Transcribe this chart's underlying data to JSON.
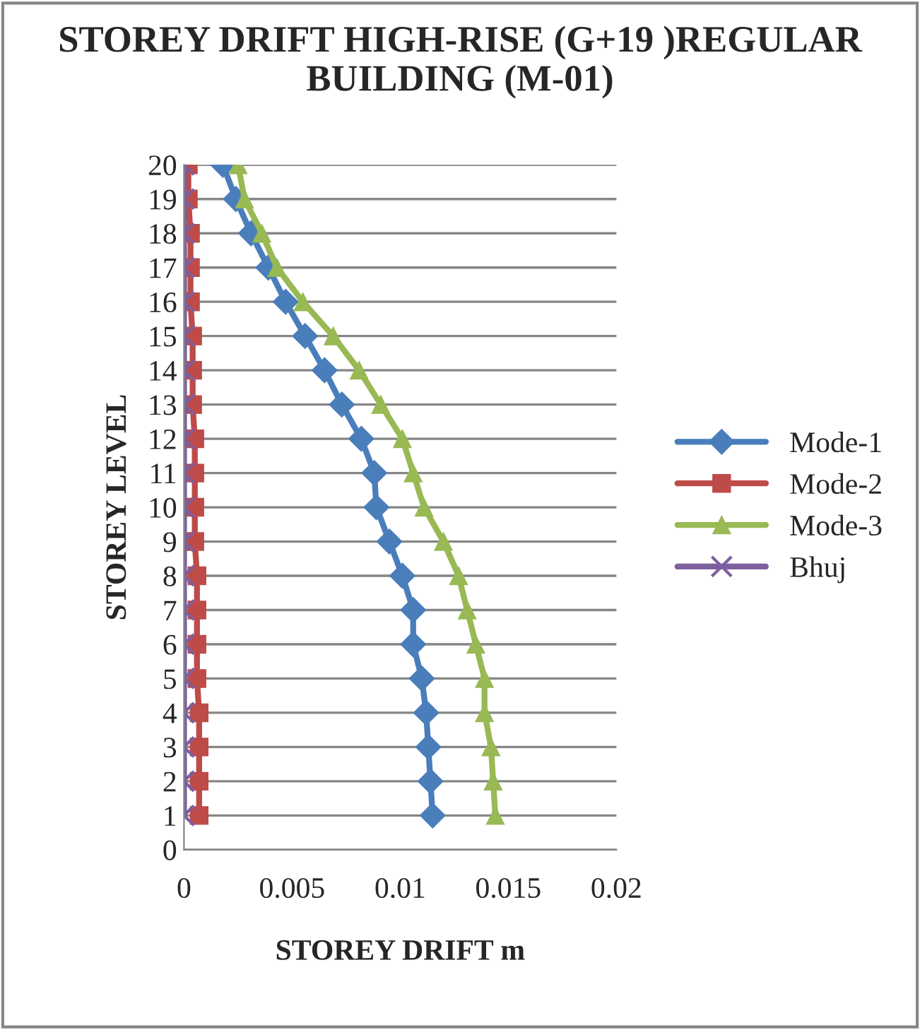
{
  "chart_data": {
    "type": "line",
    "title": "STOREY DRIFT HIGH-RISE (G+19 )REGULAR BUILDING (M-01)",
    "xlabel": "STOREY DRIFT m",
    "ylabel": "STOREY LEVEL",
    "xlim": [
      0,
      0.02
    ],
    "xticks": [
      0,
      0.005,
      0.01,
      0.015,
      0.02
    ],
    "ylim": [
      0,
      20
    ],
    "yticks": [
      0,
      1,
      2,
      3,
      4,
      5,
      6,
      7,
      8,
      9,
      10,
      11,
      12,
      13,
      14,
      15,
      16,
      17,
      18,
      19,
      20
    ],
    "grid": "y",
    "legend": "right",
    "series": [
      {
        "name": "Mode-1",
        "color": "#4a7ebb",
        "marker": "diamond",
        "x": [
          0.0115,
          0.0114,
          0.0113,
          0.0112,
          0.011,
          0.0106,
          0.0106,
          0.0101,
          0.0095,
          0.0089,
          0.0088,
          0.0082,
          0.0073,
          0.0065,
          0.0056,
          0.0047,
          0.0039,
          0.0031,
          0.0024,
          0.0018
        ],
        "values": [
          1,
          2,
          3,
          4,
          5,
          6,
          7,
          8,
          9,
          10,
          11,
          12,
          13,
          14,
          15,
          16,
          17,
          18,
          19,
          20
        ]
      },
      {
        "name": "Mode-2",
        "color": "#be4b48",
        "marker": "square",
        "x": [
          0.0007,
          0.0007,
          0.0007,
          0.0007,
          0.0006,
          0.0006,
          0.0006,
          0.0006,
          0.0005,
          0.0005,
          0.0005,
          0.0005,
          0.0004,
          0.0004,
          0.0004,
          0.0003,
          0.0003,
          0.0003,
          0.0002,
          0.0002
        ],
        "values": [
          1,
          2,
          3,
          4,
          5,
          6,
          7,
          8,
          9,
          10,
          11,
          12,
          13,
          14,
          15,
          16,
          17,
          18,
          19,
          20
        ]
      },
      {
        "name": "Mode-3",
        "color": "#98b954",
        "marker": "triangle",
        "x": [
          0.0144,
          0.0143,
          0.0142,
          0.0139,
          0.0139,
          0.0135,
          0.0131,
          0.0127,
          0.012,
          0.0111,
          0.0106,
          0.0101,
          0.0091,
          0.0081,
          0.0069,
          0.0055,
          0.0043,
          0.0036,
          0.0028,
          0.0025
        ],
        "values": [
          1,
          2,
          3,
          4,
          5,
          6,
          7,
          8,
          9,
          10,
          11,
          12,
          13,
          14,
          15,
          16,
          17,
          18,
          19,
          20
        ]
      },
      {
        "name": "Bhuj",
        "color": "#7d5fa0",
        "marker": "cross",
        "x": [
          0,
          0,
          0,
          0,
          0,
          0,
          0,
          0,
          0,
          0,
          0,
          0,
          0,
          0,
          0,
          0,
          0,
          0,
          0,
          0
        ],
        "values": [
          1,
          2,
          3,
          4,
          5,
          6,
          7,
          8,
          9,
          10,
          11,
          12,
          13,
          14,
          15,
          16,
          17,
          18,
          19,
          20
        ]
      }
    ]
  }
}
